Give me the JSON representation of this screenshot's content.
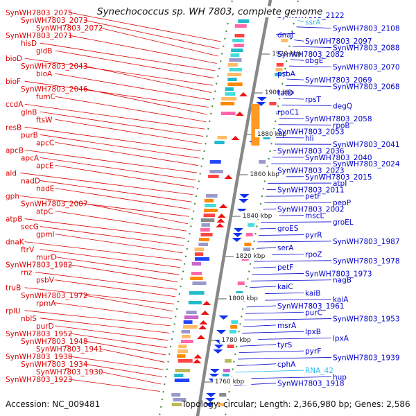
{
  "title": "Synechococcus sp. WH 7803, complete genome",
  "footer": {
    "accession": "Accession: NC_009481",
    "topology": "Topology: circular; Length: 2,366,980 bp; Genes: 2,586"
  },
  "colors": {
    "left_label": "#dd0000",
    "right_label": "#0000cc",
    "rna_label": "#33bbee",
    "backbone": "#888888",
    "tick": "#338833"
  },
  "kbp_ticks": [
    "kbp",
    "1920 kbp",
    "1900 kbp",
    "1880 kbp",
    "1860 kbp",
    "1840 kbp",
    "1820 kbp",
    "1800 kbp",
    "1780 kbp",
    "1760 kbp"
  ],
  "left_labels": [
    "SynWH7803_2075",
    "SynWH7803_2073",
    "SynWH7803_2072",
    "SynWH7803_2071",
    "hisD",
    "gidB",
    "bioD",
    "SynWH7803_2043",
    "bioA",
    "bioF",
    "SynWH7803_2046",
    "fumC",
    "ccdA",
    "glnB",
    "ftsW",
    "resB",
    "purB",
    "apcC",
    "apcB",
    "apcA",
    "apcE",
    "ald",
    "nadD",
    "nadE",
    "gph",
    "SynWH7803_2007",
    "atpC",
    "atpB",
    "secG",
    "gpmI",
    "dnaK",
    "ftrV",
    "murD",
    "SynWH7803_1982",
    "rnz",
    "psbV",
    "truB",
    "SynWH7803_1972",
    "rpmA",
    "rplU",
    "nblS",
    "purD",
    "SynWH7803_1952",
    "SynWH7803_1948",
    "SynWH7803_1941",
    "SynWH7803_1938",
    "SynWH7803_1934",
    "SynWH7803_1930",
    "SynWH7803_1923"
  ],
  "right_labels": [
    "SynWH7803_2122",
    "ssrA",
    "SynWH7803_2108",
    "dnaJ",
    "SynWH7803_2097",
    "SynWH7803_2088",
    "SynWH7803_2082",
    "obgE",
    "SynWH7803_2070",
    "psbA",
    "SynWH7803_2069",
    "SynWH7803_2068",
    "tatD",
    "rpsT",
    "degQ",
    "rpoC1",
    "SynWH7803_2058",
    "rpoB",
    "SynWH7803_2053",
    "hli",
    "SynWH7803_2041",
    "SynWH7803_2036",
    "SynWH7803_2040",
    "SynWH7803_2024",
    "SynWH7803_2023",
    "SynWH7803_2015",
    "atpI",
    "SynWH7803_2011",
    "petF",
    "pepP",
    "SynWH7803_2002",
    "mscL",
    "groEL",
    "groES",
    "pyrR",
    "SynWH7803_1987",
    "serA",
    "rpoZ",
    "SynWH7803_1978",
    "petF",
    "SynWH7803_1973",
    "nagB",
    "kaiC",
    "kaiB",
    "kaiA",
    "SynWH7803_1961",
    "purC",
    "SynWH7803_1953",
    "msrA",
    "lpxB",
    "lpxA",
    "tyrS",
    "pyrF",
    "SynWH7803_1939",
    "cphA",
    "RNA_42",
    "hup",
    "SynWH7803_1918"
  ]
}
